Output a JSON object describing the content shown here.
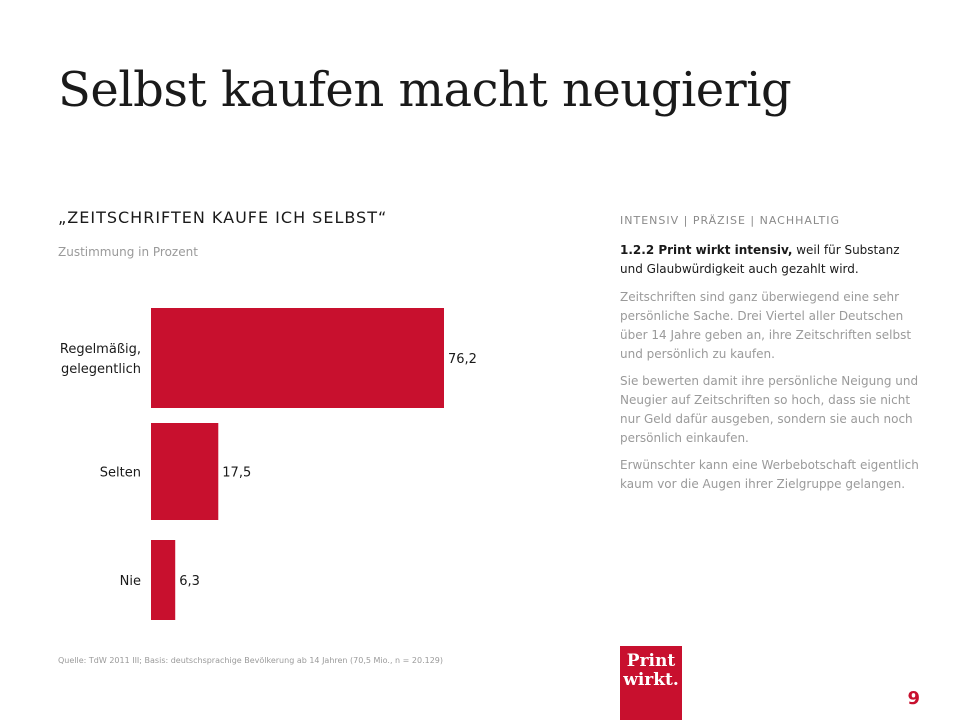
{
  "title": "Selbst kaufen macht neugierig",
  "chart_data": {
    "type": "bar",
    "orientation": "horizontal",
    "title": "„ZEITSCHRIFTEN  KAUFE ICH SELBST“",
    "subtitle": "Zustimmung in Prozent",
    "categories": [
      "Regelmäßig,\ngelegentlich",
      "Selten",
      "Nie"
    ],
    "values": [
      76.2,
      17.5,
      6.3
    ],
    "value_labels": [
      "76,2",
      "17,5",
      "6,3"
    ],
    "bar_color": "#c8102e",
    "xlim": [
      0,
      100
    ],
    "grid": false
  },
  "source": "Quelle: TdW 2011 III; Basis: deutschsprachige Bevölkerung ab 14 Jahren (70,5 Mio., n = 20.129)",
  "sidebar": {
    "tagline": "INTENSIV | PRÄZISE | NACHHALTIG",
    "lead_bold": "1.2.2 Print wirkt intensiv,",
    "lead_rest": " weil für Substanz und Glaubwürdigkeit auch gezahlt wird.",
    "paragraphs": [
      "Zeitschriften sind ganz überwiegend eine sehr persönliche Sache. Drei Viertel aller Deutschen über 14 Jahre geben an, ihre Zeitschriften selbst und persönlich zu kaufen.",
      "Sie bewerten damit ihre persönliche Neigung und Neugier auf Zeitschriften so hoch, dass sie nicht nur Geld dafür ausgeben, sondern sie auch noch persönlich einkaufen.",
      "Erwünschter kann eine Werbebotschaft eigentlich kaum vor die Augen ihrer Zielgruppe gelangen."
    ]
  },
  "logo": {
    "line1": "Print",
    "line2": "wirkt."
  },
  "page_number": "9"
}
